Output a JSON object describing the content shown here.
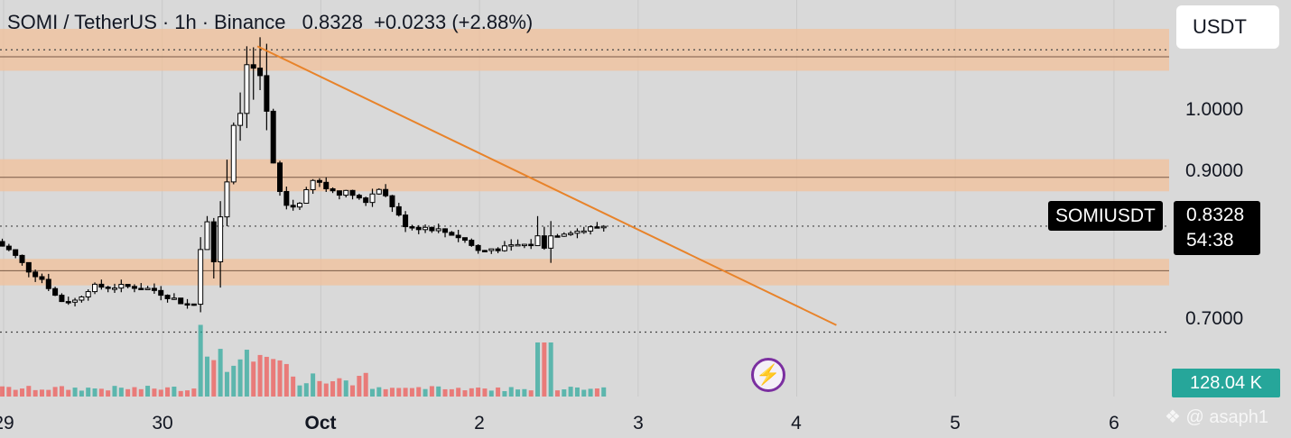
{
  "header": {
    "symbol": "SOMI / TetherUS",
    "interval": "1h",
    "exchange": "Binance",
    "price": "0.8328",
    "change": "+0.0233 (+2.88%)",
    "sep": "·"
  },
  "currency_button": "USDT",
  "price_tag": {
    "name": "SOMIUSDT",
    "price": "0.8328",
    "countdown": "54:38"
  },
  "volume_tag": "128.04 K",
  "watermark": "@ asaph1",
  "icons": {
    "bolt": "lightning-bolt-icon",
    "watermark_logo": "diamond-logo-icon"
  },
  "colors": {
    "up": "#26a69a",
    "down": "#ef5350",
    "trendline": "#e8832a",
    "zone": "#f2c09a",
    "background": "#d9d9d9"
  },
  "chart_data": {
    "type": "candlestick",
    "title": "SOMI / TetherUS · 1h · Binance",
    "y_ticks": [
      "1.0000",
      "0.9000",
      "0.7000"
    ],
    "x_ticks": [
      "29",
      "30",
      "Oct",
      "2",
      "3",
      "4",
      "5",
      "6"
    ],
    "ylim": [
      0.66,
      1.13
    ],
    "last_price": 0.8328,
    "zones": [
      {
        "low": 1.055,
        "high": 1.115,
        "line": 1.075
      },
      {
        "low": 0.882,
        "high": 0.928,
        "line": 0.902
      },
      {
        "low": 0.747,
        "high": 0.785,
        "line": 0.768
      }
    ],
    "dotted_levels": [
      1.085,
      0.832,
      0.68
    ],
    "trendline": {
      "from": {
        "day": 1.6,
        "price": 1.09
      },
      "to": {
        "day": 5.25,
        "price": 0.69
      }
    },
    "price_path": [
      {
        "day": -0.05,
        "price": 0.81
      },
      {
        "day": 0.05,
        "price": 0.795
      },
      {
        "day": 0.15,
        "price": 0.77
      },
      {
        "day": 0.25,
        "price": 0.755
      },
      {
        "day": 0.35,
        "price": 0.725
      },
      {
        "day": 0.45,
        "price": 0.725
      },
      {
        "day": 0.55,
        "price": 0.745
      },
      {
        "day": 0.65,
        "price": 0.745
      },
      {
        "day": 0.75,
        "price": 0.745
      },
      {
        "day": 0.85,
        "price": 0.745
      },
      {
        "day": 0.95,
        "price": 0.74
      },
      {
        "day": 1.05,
        "price": 0.73
      },
      {
        "day": 1.15,
        "price": 0.72
      },
      {
        "day": 1.22,
        "price": 0.72
      },
      {
        "day": 1.26,
        "price": 0.905
      },
      {
        "day": 1.32,
        "price": 0.78
      },
      {
        "day": 1.4,
        "price": 0.87
      },
      {
        "day": 1.48,
        "price": 1.01
      },
      {
        "day": 1.56,
        "price": 1.06
      },
      {
        "day": 1.64,
        "price": 1.01
      },
      {
        "day": 1.72,
        "price": 0.89
      },
      {
        "day": 1.8,
        "price": 0.855
      },
      {
        "day": 1.88,
        "price": 0.87
      },
      {
        "day": 1.96,
        "price": 0.9
      },
      {
        "day": 2.04,
        "price": 0.885
      },
      {
        "day": 2.12,
        "price": 0.88
      },
      {
        "day": 2.2,
        "price": 0.88
      },
      {
        "day": 2.28,
        "price": 0.865
      },
      {
        "day": 2.36,
        "price": 0.89
      },
      {
        "day": 2.44,
        "price": 0.865
      },
      {
        "day": 2.52,
        "price": 0.835
      },
      {
        "day": 2.6,
        "price": 0.83
      },
      {
        "day": 2.68,
        "price": 0.83
      },
      {
        "day": 2.76,
        "price": 0.825
      },
      {
        "day": 2.84,
        "price": 0.82
      },
      {
        "day": 2.92,
        "price": 0.81
      },
      {
        "day": 3.0,
        "price": 0.795
      },
      {
        "day": 3.08,
        "price": 0.8
      },
      {
        "day": 3.16,
        "price": 0.8
      },
      {
        "day": 3.24,
        "price": 0.805
      },
      {
        "day": 3.32,
        "price": 0.805
      },
      {
        "day": 3.4,
        "price": 0.815
      },
      {
        "day": 3.48,
        "price": 0.82
      },
      {
        "day": 3.56,
        "price": 0.825
      },
      {
        "day": 3.64,
        "price": 0.825
      },
      {
        "day": 3.72,
        "price": 0.83
      },
      {
        "day": 3.8,
        "price": 0.8328
      }
    ]
  }
}
